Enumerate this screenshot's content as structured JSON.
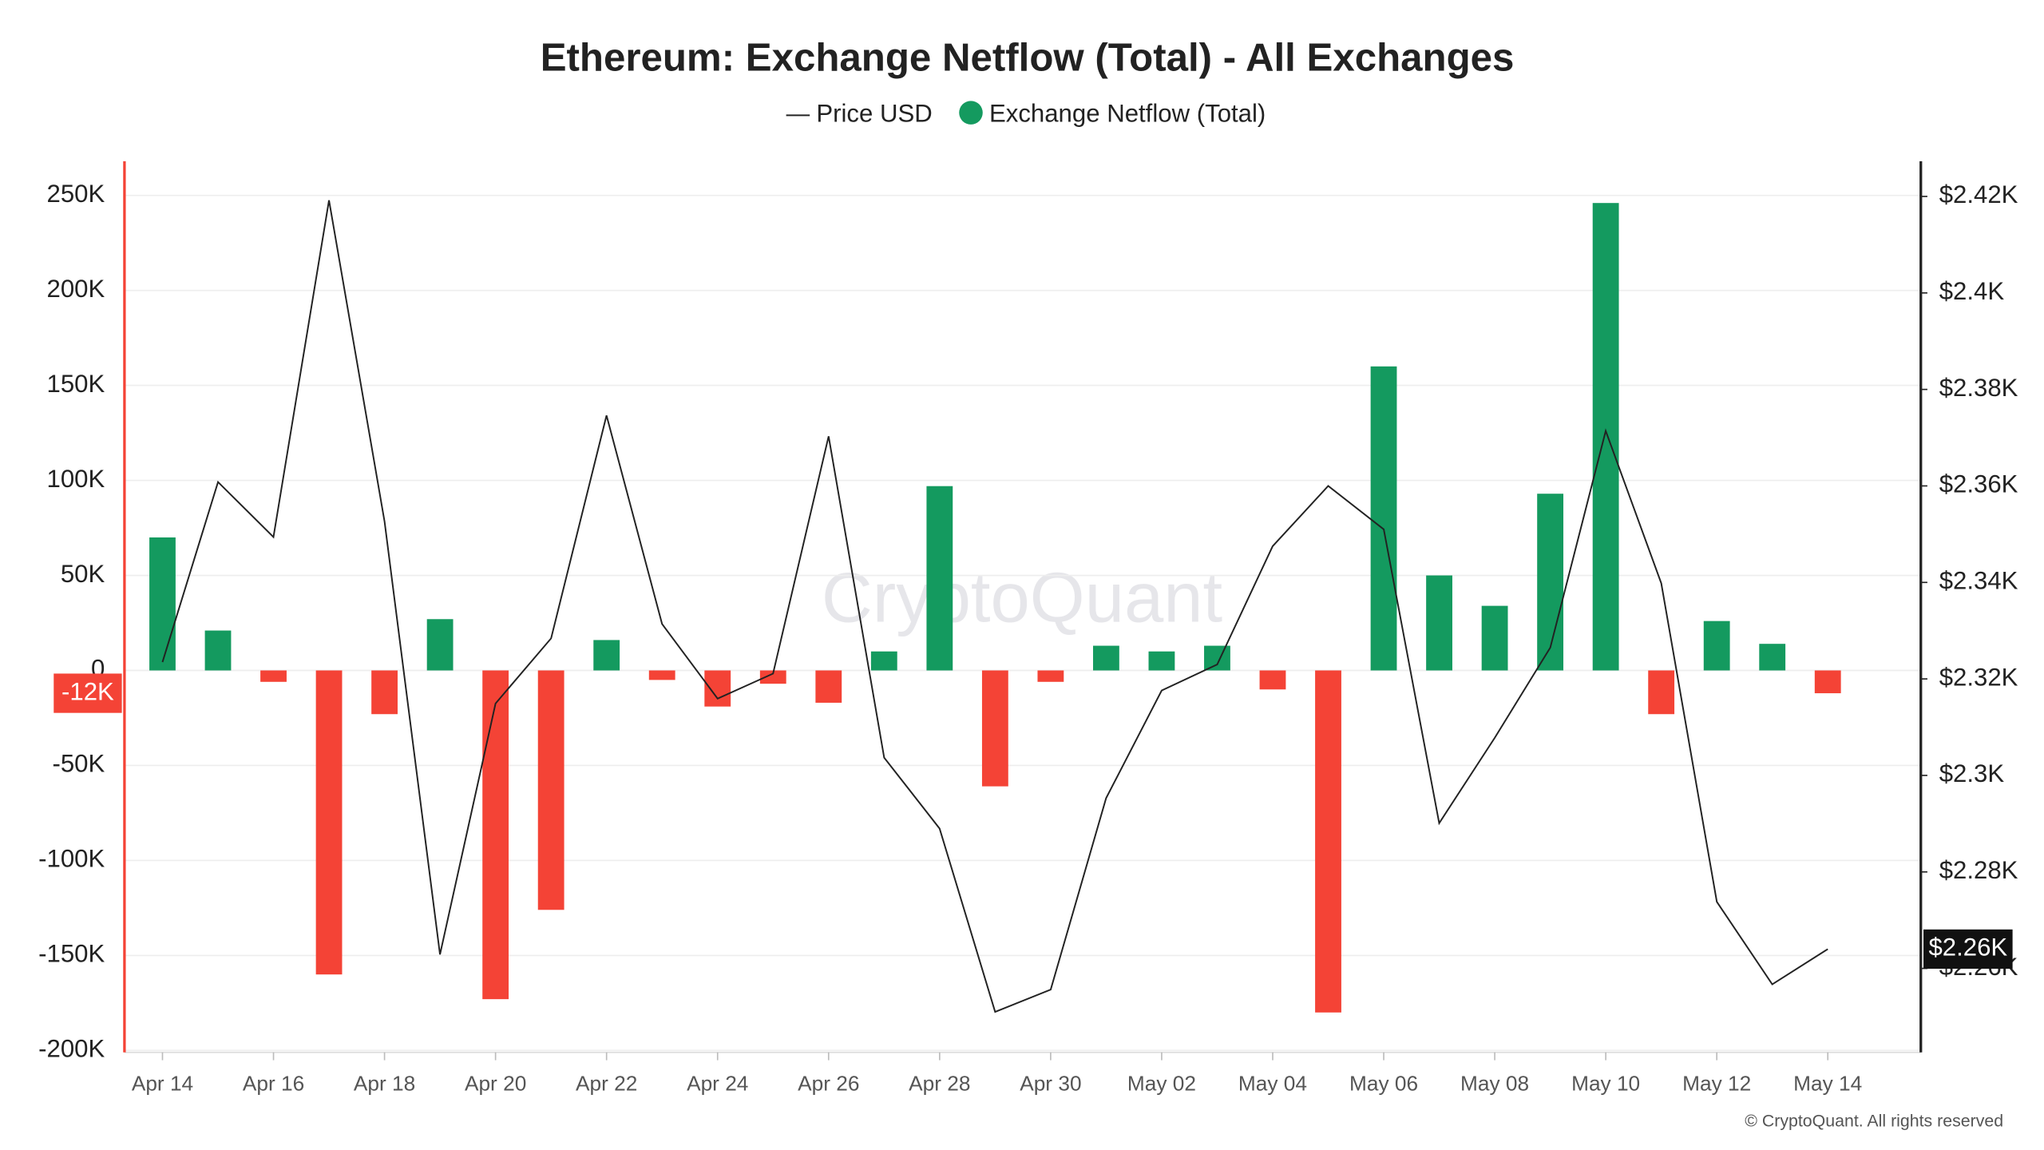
{
  "chart_data": {
    "type": "bar",
    "title": "Ethereum: Exchange Netflow (Total) - All Exchanges",
    "watermark": "CryptoQuant",
    "footer": "© CryptoQuant. All rights reserved",
    "categories": [
      "Apr 14",
      null,
      "Apr 16",
      null,
      "Apr 18",
      null,
      "Apr 20",
      null,
      "Apr 22",
      null,
      "Apr 24",
      null,
      "Apr 26",
      null,
      "Apr 28",
      null,
      "Apr 30",
      null,
      "May 02",
      null,
      "May 04",
      null,
      "May 06",
      null,
      "May 08",
      null,
      "May 10",
      null,
      "May 12",
      null,
      "May 14"
    ],
    "series": [
      {
        "name": "Price USD",
        "type": "line",
        "axis": "y2",
        "color": "#222222",
        "values": [
          2323.5,
          2360.8,
          2349.4,
          2419.2,
          2352.6,
          2262.9,
          2314.9,
          2328.4,
          2374.6,
          2331.4,
          2315.9,
          2321.1,
          2370.3,
          2303.7,
          2289.0,
          2251.0,
          2255.6,
          2295.3,
          2317.6,
          2323.0,
          2347.5,
          2360.0,
          2351.0,
          2290.1,
          2307.8,
          2326.5,
          2371.4,
          2339.8,
          2273.8,
          2256.7,
          2264
        ],
        "last_label": "$2.26K"
      },
      {
        "name": "Exchange Netflow (Total)",
        "type": "bar",
        "axis": "y",
        "color": "#149a5f",
        "negative_color": "#f44336",
        "values": [
          70000,
          21000,
          -6000,
          -160000,
          -23000,
          27000,
          -173000,
          -126000,
          16000,
          -5000,
          -19000,
          -7000,
          -17000,
          10000,
          97000,
          -61000,
          -6000,
          13000,
          10000,
          13000,
          -10000,
          -180000,
          160000,
          50000,
          34000,
          93000,
          246000,
          -23000,
          26000,
          14000,
          -12000
        ],
        "last_label": "-12K"
      }
    ],
    "ylim": [
      -201000,
      268000
    ],
    "yticks": [
      {
        "value": -200000,
        "label": "-200K"
      },
      {
        "value": -150000,
        "label": "-150K"
      },
      {
        "value": -100000,
        "label": "-100K"
      },
      {
        "value": -50000,
        "label": "-50K"
      },
      0,
      {
        "value": 50000,
        "label": "50K"
      },
      {
        "value": 100000,
        "label": "100K"
      },
      {
        "value": 150000,
        "label": "150K"
      },
      {
        "value": 200000,
        "label": "200K"
      },
      {
        "value": 250000,
        "label": "250K"
      }
    ],
    "y2lim": [
      2242.6,
      2427.3
    ],
    "y2ticks": [
      {
        "value": 2260,
        "label": "$2.26K"
      },
      {
        "value": 2280,
        "label": "$2.28K"
      },
      {
        "value": 2300,
        "label": "$2.3K"
      },
      {
        "value": 2320,
        "label": "$2.32K"
      },
      {
        "value": 2340,
        "label": "$2.34K"
      },
      {
        "value": 2360,
        "label": "$2.36K"
      },
      {
        "value": 2380,
        "label": "$2.38K"
      },
      {
        "value": 2400,
        "label": "$2.4K"
      },
      {
        "value": 2420,
        "label": "$2.42K"
      }
    ],
    "grid": true
  }
}
